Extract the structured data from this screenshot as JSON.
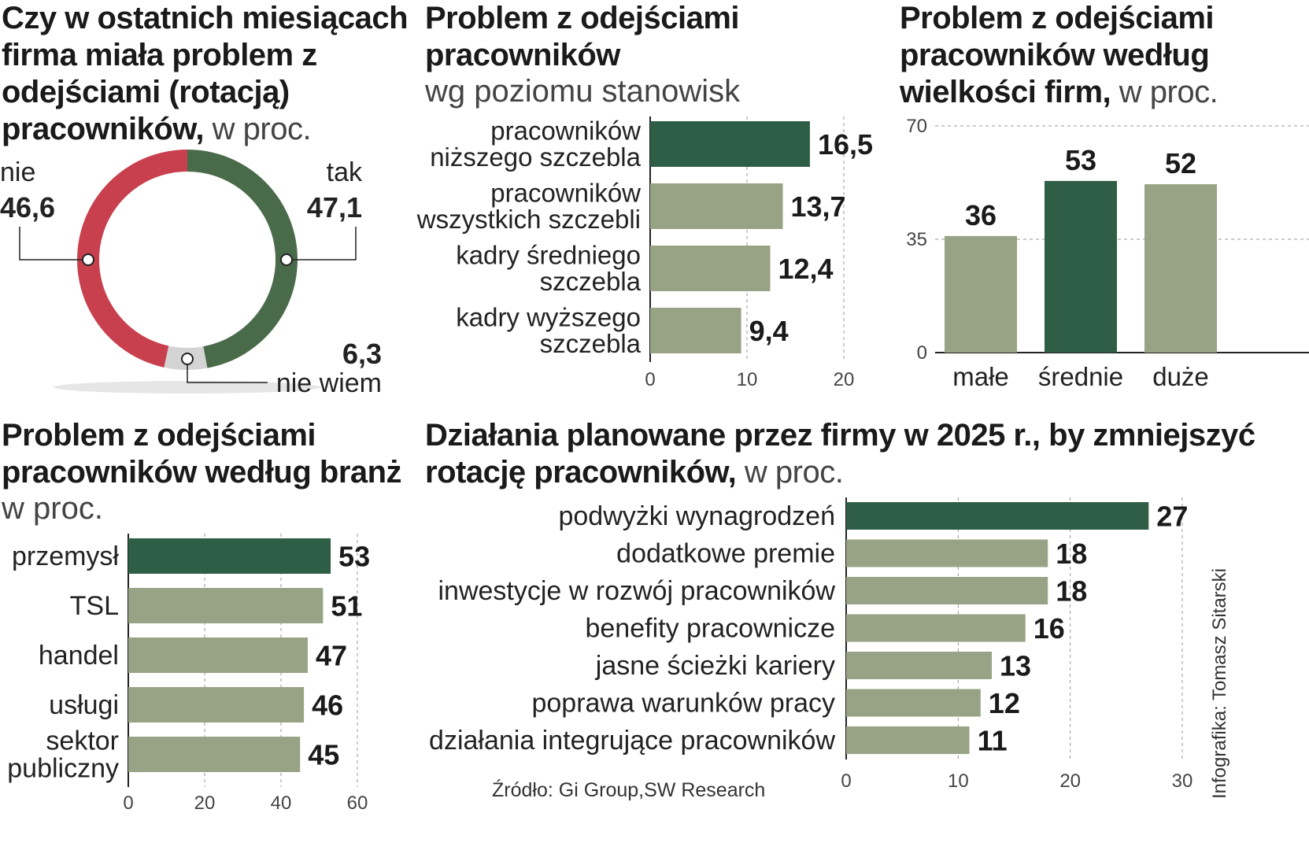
{
  "colors": {
    "dark": "#2e5e45",
    "light": "#98a385",
    "red": "#c8404d",
    "green": "#4a6b4a",
    "gray": "#d4d4d4",
    "grid": "#999999"
  },
  "chart_data": [
    {
      "id": "donut",
      "type": "pie",
      "title": "Czy w ostatnich miesiącach firma miała problem z odejściami (rotacją) pracowników,",
      "unit": "w proc.",
      "slices": [
        {
          "label": "tak",
          "value": 47.1,
          "display": "47,1",
          "color": "#4a6b4a"
        },
        {
          "label": "nie wiem",
          "value": 6.3,
          "display": "6,3",
          "color": "#d4d4d4"
        },
        {
          "label": "nie",
          "value": 46.6,
          "display": "46,6",
          "color": "#c8404d"
        }
      ]
    },
    {
      "id": "levels",
      "type": "bar",
      "orientation": "horizontal",
      "title": "Problem z odejściami pracowników",
      "subtitle": "wg poziomu stanowisk",
      "categories": [
        [
          "pracowników",
          "niższego szczebla"
        ],
        [
          "pracowników",
          "wszystkich szczebli"
        ],
        [
          "kadry średniego",
          "szczebla"
        ],
        [
          "kadry wyższego",
          "szczebla"
        ]
      ],
      "values": [
        16.5,
        13.7,
        12.4,
        9.4
      ],
      "labels": [
        "16,5",
        "13,7",
        "12,4",
        "9,4"
      ],
      "highlight": [
        true,
        false,
        false,
        false
      ],
      "xlim": [
        0,
        20
      ],
      "ticks": [
        "0",
        "10",
        "20"
      ]
    },
    {
      "id": "size",
      "type": "bar",
      "orientation": "vertical",
      "title": "Problem z odejściami pracowników według wielkości firm,",
      "unit": "w proc.",
      "categories": [
        "małe",
        "średnie",
        "duże"
      ],
      "values": [
        36,
        53,
        52
      ],
      "labels": [
        "36",
        "53",
        "52"
      ],
      "highlight": [
        false,
        true,
        false
      ],
      "ylim": [
        0,
        70
      ],
      "ticks": [
        "0",
        "35",
        "70"
      ]
    },
    {
      "id": "industries",
      "type": "bar",
      "orientation": "horizontal",
      "title": "Problem z odejściami pracowników według branż",
      "unit": "w proc.",
      "categories": [
        [
          "przemysł"
        ],
        [
          "TSL"
        ],
        [
          "handel"
        ],
        [
          "usługi"
        ],
        [
          "sektor",
          "publiczny"
        ]
      ],
      "values": [
        53,
        51,
        47,
        46,
        45
      ],
      "labels": [
        "53",
        "51",
        "47",
        "46",
        "45"
      ],
      "highlight": [
        true,
        false,
        false,
        false,
        false
      ],
      "xlim": [
        0,
        60
      ],
      "ticks": [
        "0",
        "20",
        "40",
        "60"
      ]
    },
    {
      "id": "actions",
      "type": "bar",
      "orientation": "horizontal",
      "title": "Działania planowane przez firmy w 2025 r., by zmniejszyć rotację pracowników,",
      "unit": "w proc.",
      "categories": [
        [
          "podwyżki wynagrodzeń"
        ],
        [
          "dodatkowe premie"
        ],
        [
          "inwestycje w rozwój pracowników"
        ],
        [
          "benefity pracownicze"
        ],
        [
          "jasne ścieżki kariery"
        ],
        [
          "poprawa warunków pracy"
        ],
        [
          "działania integrujące pracowników"
        ]
      ],
      "values": [
        27,
        18,
        18,
        16,
        13,
        12,
        11
      ],
      "labels": [
        "27",
        "18",
        "18",
        "16",
        "13",
        "12",
        "11"
      ],
      "highlight": [
        true,
        false,
        false,
        false,
        false,
        false,
        false
      ],
      "xlim": [
        0,
        30
      ],
      "ticks": [
        "0",
        "10",
        "20",
        "30"
      ]
    }
  ],
  "titles": {
    "donut": {
      "bold": "Czy w ostatnich miesiącach firma miała problem z odejściami (rotacją) pracowników,",
      "unit": "w proc."
    },
    "levels": {
      "bold": "Problem z odejściami pracowników",
      "sub": "wg poziomu stanowisk"
    },
    "size": {
      "bold": "Problem z odejściami pracowników według wielkości firm,",
      "unit": "w proc."
    },
    "industries": {
      "bold": "Problem z odejściami pracowników według branż",
      "unit": "w proc."
    },
    "actions": {
      "bold": "Działania planowane przez firmy w 2025 r., by zmniejszyć rotację pracowników,",
      "unit": "w proc."
    }
  },
  "source": "Źródło: Gi Group,SW Research",
  "credit": "Infografika: Tomasz Sitarski"
}
